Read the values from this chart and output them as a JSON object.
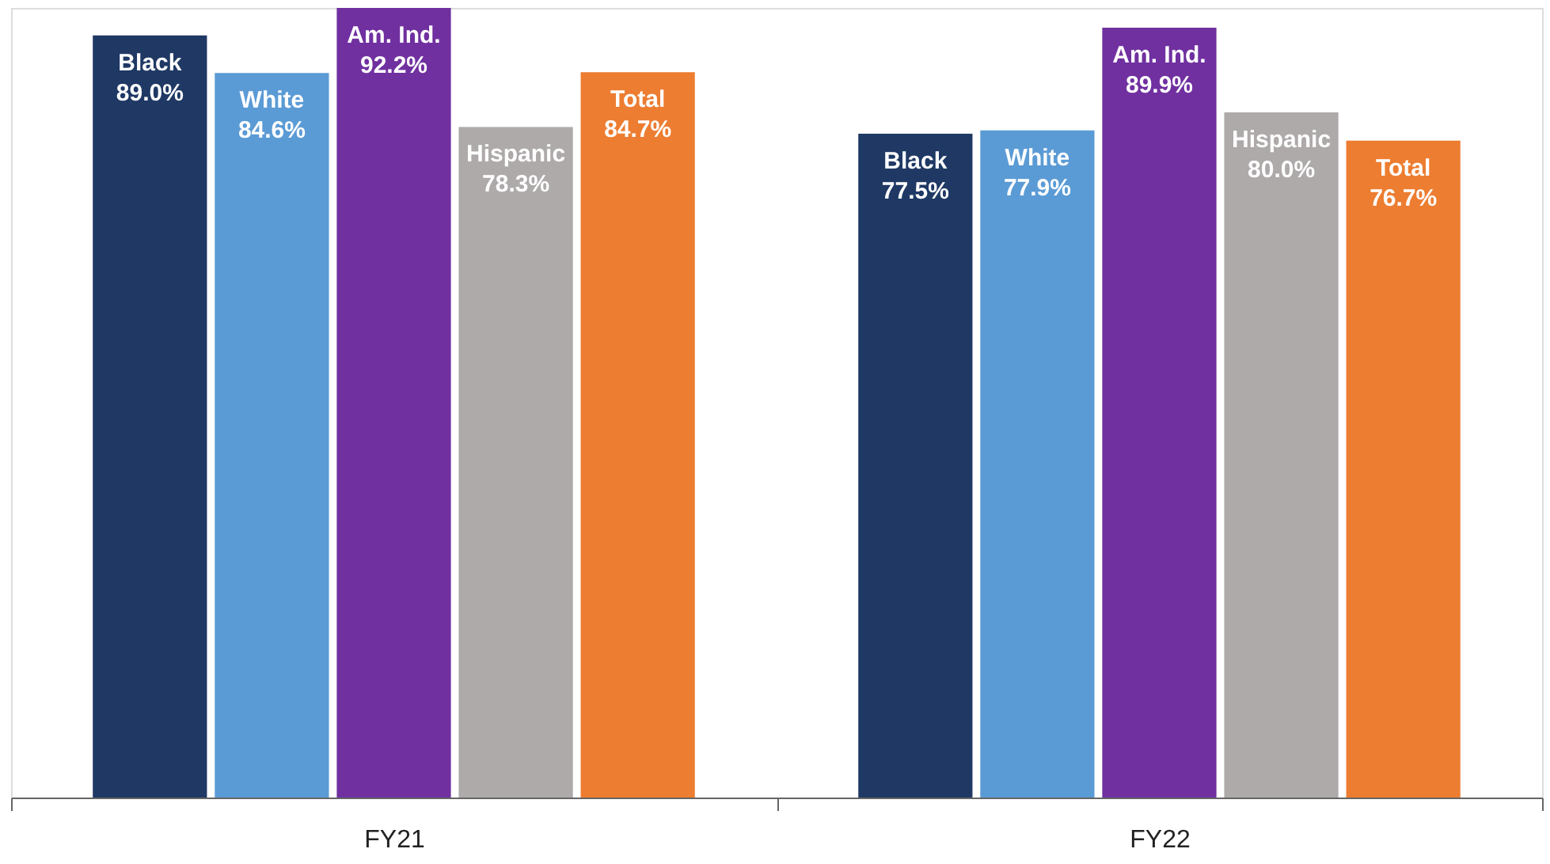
{
  "chart_data": {
    "type": "bar",
    "categories": [
      "FY21",
      "FY22"
    ],
    "series": [
      {
        "name": "Black",
        "color": "#1f3864",
        "values": [
          89.0,
          77.5
        ],
        "value_labels": [
          "89.0%",
          "77.5%"
        ]
      },
      {
        "name": "White",
        "color": "#5b9bd5",
        "values": [
          84.6,
          77.9
        ],
        "value_labels": [
          "84.6%",
          "77.9%"
        ]
      },
      {
        "name": "Am. Ind.",
        "color": "#7030a0",
        "values": [
          92.2,
          89.9
        ],
        "value_labels": [
          "92.2%",
          "89.9%"
        ]
      },
      {
        "name": "Hispanic",
        "color": "#aeaaaa",
        "values": [
          78.3,
          80.0
        ],
        "value_labels": [
          "78.3%",
          "80.0%"
        ]
      },
      {
        "name": "Total",
        "color": "#ed7d31",
        "values": [
          84.7,
          76.7
        ],
        "value_labels": [
          "84.7%",
          "76.7%"
        ]
      }
    ],
    "legend": false,
    "grid": false,
    "tick_labels": "x"
  }
}
